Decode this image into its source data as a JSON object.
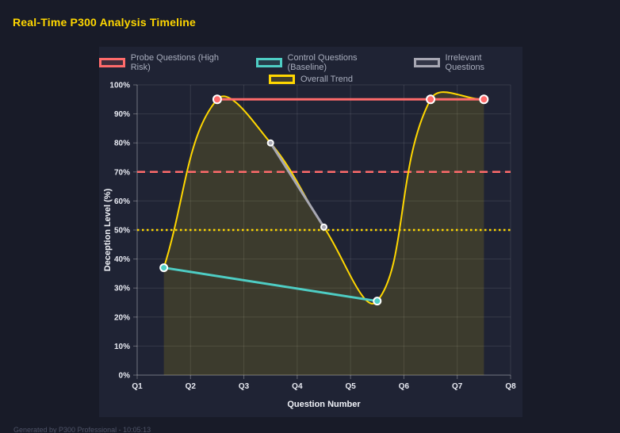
{
  "page": {
    "title": "Real-Time P300 Analysis Timeline",
    "footer": "Generated by P300 Professional - 10:05:13"
  },
  "colors": {
    "background": "#181b28",
    "panel": "#1f2334",
    "title_accent": "#ffd700",
    "grid_line": "rgba(255,255,255,0.10)",
    "axis_line": "rgba(255,255,255,0.30)",
    "tick_label": "#e8eaf2",
    "legend_label": "#a8adbd",
    "footer_text": "#4f5468",
    "point_border": "#ffffff"
  },
  "chart_data": {
    "type": "line",
    "title": "Real-Time P300 Analysis Timeline",
    "xlabel": "Question Number",
    "ylabel": "Deception Level (%)",
    "x_ticks": [
      "Q1",
      "Q2",
      "Q3",
      "Q4",
      "Q5",
      "Q6",
      "Q7",
      "Q8"
    ],
    "x_range": [
      1,
      8
    ],
    "ylim": [
      0,
      100
    ],
    "y_tick_step": 10,
    "y_tick_suffix": "%",
    "grid": true,
    "legend_position": "top",
    "series": [
      {
        "key": "probe",
        "name": "Probe Questions (High Risk)",
        "color": "#ff6b6b",
        "x": [
          2.5,
          6.5,
          7.5
        ],
        "values": [
          95,
          95,
          95
        ],
        "point_radius": 5
      },
      {
        "key": "control",
        "name": "Control Questions (Baseline)",
        "color": "#4ecdc4",
        "x": [
          1.5,
          5.5
        ],
        "values": [
          37,
          25.5
        ],
        "point_radius": 4.5
      },
      {
        "key": "irrelevant",
        "name": "Irrelevant Questions",
        "color": "#a7a7b3",
        "x": [
          3.5,
          4.5
        ],
        "values": [
          80,
          51
        ],
        "point_radius": 3.5
      },
      {
        "key": "trend",
        "name": "Overall Trend",
        "color": "#ffd700",
        "x": [
          1.5,
          2.5,
          3.5,
          4.5,
          5.5,
          6.5,
          7.5
        ],
        "values": [
          37,
          95,
          80,
          51,
          25.5,
          95,
          95
        ],
        "smooth": true,
        "fill": true,
        "point_radius": 0
      }
    ],
    "thresholds": [
      {
        "label": "high-risk-threshold",
        "value": 70,
        "color": "#ff6b6b",
        "style": "dashed"
      },
      {
        "label": "baseline-threshold",
        "value": 50,
        "color": "#ffd700",
        "style": "dotted"
      }
    ]
  }
}
